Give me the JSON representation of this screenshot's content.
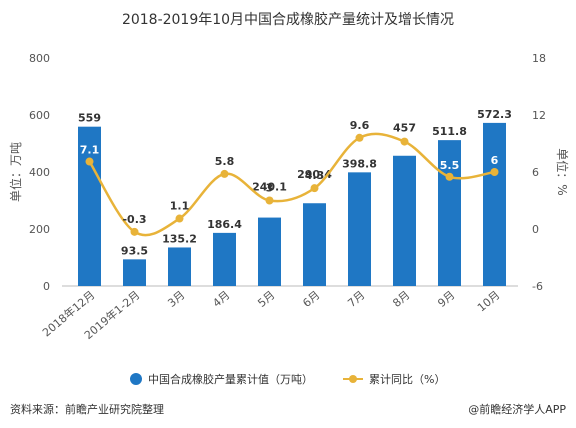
{
  "chart_data": {
    "type": "bar",
    "title": "2018-2019年10月中国合成橡胶产量统计及增长情况",
    "categories": [
      "2018年12月",
      "2019年1-2月",
      "3月",
      "4月",
      "5月",
      "6月",
      "7月",
      "8月",
      "9月",
      "10月"
    ],
    "left_axis": {
      "label": "单位：万吨",
      "ylim": [
        0,
        800
      ],
      "ticks": [
        "0",
        "200",
        "400",
        "600",
        "800"
      ]
    },
    "right_axis": {
      "label": "单位：%",
      "ylim": [
        -6,
        18
      ],
      "ticks": [
        "-6",
        "0",
        "6",
        "12",
        "18"
      ]
    },
    "series": [
      {
        "name": "中国合成橡胶产量累计值（万吨）",
        "type": "bar",
        "axis": "left",
        "color": "#1f77c4",
        "values": [
          559,
          93.5,
          135.2,
          186.4,
          240.1,
          290.4,
          398.8,
          457,
          511.8,
          572.3
        ],
        "labels": [
          "559",
          "93.5",
          "135.2",
          "186.4",
          "240.1",
          "290.4",
          "398.8",
          "457",
          "511.8",
          "572.3"
        ]
      },
      {
        "name": "累计同比（%）",
        "type": "line",
        "axis": "right",
        "color": "#e8b339",
        "values": [
          7.1,
          -0.3,
          1.1,
          5.8,
          3,
          4.3,
          9.6,
          9.2,
          5.5,
          6
        ],
        "labels": [
          "7.1",
          "-0.3",
          "1.1",
          "5.8",
          "3",
          "4.3",
          "9.6",
          "",
          "5.5",
          "6"
        ]
      }
    ],
    "grid": false,
    "legend_position": "bottom"
  },
  "footer": {
    "source": "资料来源：前瞻产业研究院整理",
    "brand": "@前瞻经济学人APP"
  }
}
